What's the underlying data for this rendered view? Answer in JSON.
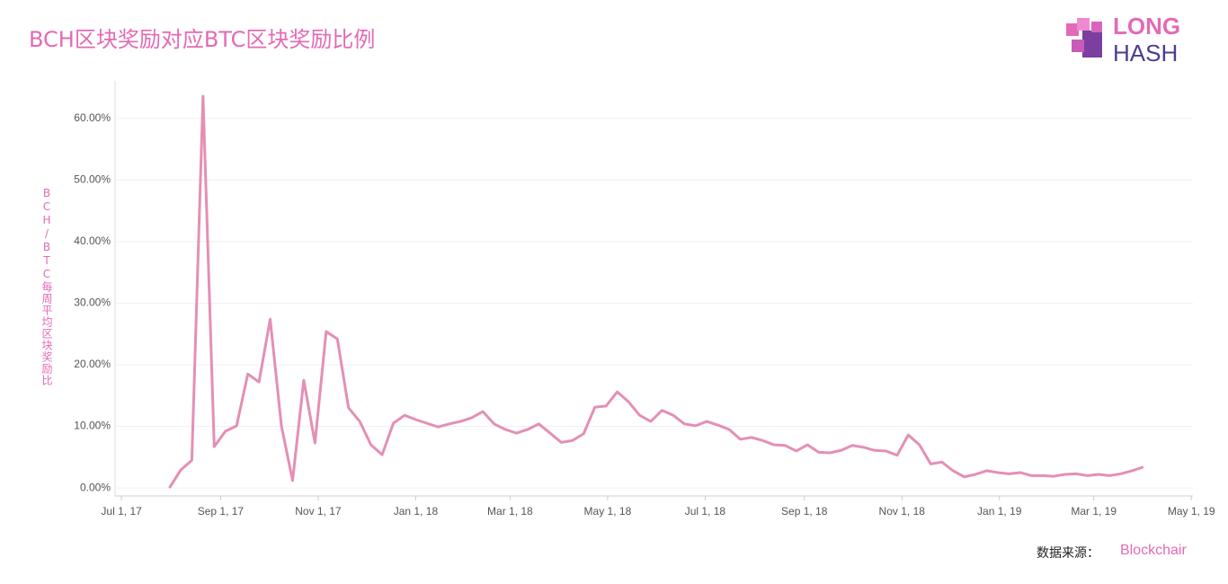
{
  "chart_data": {
    "type": "line",
    "title": "BCH区块奖励对应BTC区块奖励比例",
    "y_label": "BCH/BTC每周平均区块奖励比",
    "source_label": "数据来源：",
    "source": "Blockchair",
    "logo": {
      "line1": "LONG",
      "line2": "HASH"
    },
    "x": [
      "2017-07-31",
      "2017-08-07",
      "2017-08-14",
      "2017-08-21",
      "2017-08-28",
      "2017-09-04",
      "2017-09-11",
      "2017-09-18",
      "2017-09-25",
      "2017-10-02",
      "2017-10-09",
      "2017-10-16",
      "2017-10-23",
      "2017-10-30",
      "2017-11-06",
      "2017-11-13",
      "2017-11-20",
      "2017-11-27",
      "2017-12-04",
      "2017-12-11",
      "2017-12-18",
      "2017-12-25",
      "2018-01-01",
      "2018-01-08",
      "2018-01-15",
      "2018-01-22",
      "2018-01-29",
      "2018-02-05",
      "2018-02-12",
      "2018-02-19",
      "2018-02-26",
      "2018-03-05",
      "2018-03-12",
      "2018-03-19",
      "2018-03-26",
      "2018-04-02",
      "2018-04-09",
      "2018-04-16",
      "2018-04-23",
      "2018-04-30",
      "2018-05-07",
      "2018-05-14",
      "2018-05-21",
      "2018-05-28",
      "2018-06-04",
      "2018-06-11",
      "2018-06-18",
      "2018-06-25",
      "2018-07-02",
      "2018-07-09",
      "2018-07-16",
      "2018-07-23",
      "2018-07-30",
      "2018-08-06",
      "2018-08-13",
      "2018-08-20",
      "2018-08-27",
      "2018-09-03",
      "2018-09-10",
      "2018-09-17",
      "2018-09-24",
      "2018-10-01",
      "2018-10-08",
      "2018-10-15",
      "2018-10-22",
      "2018-10-29",
      "2018-11-05",
      "2018-11-12",
      "2018-11-19",
      "2018-11-26",
      "2018-12-03",
      "2018-12-10",
      "2018-12-17",
      "2018-12-24",
      "2018-12-31",
      "2019-01-07",
      "2019-01-14",
      "2019-01-21",
      "2019-01-28",
      "2019-02-04",
      "2019-02-11",
      "2019-02-18",
      "2019-02-25",
      "2019-03-04",
      "2019-03-11",
      "2019-03-18",
      "2019-03-25",
      "2019-04-01"
    ],
    "series": [
      {
        "name": "BCH/BTC",
        "color": "#e48fb5",
        "values": [
          0,
          2.9,
          4.5,
          63.6,
          6.7,
          9.2,
          10.1,
          18.5,
          17.2,
          27.4,
          10.1,
          1.2,
          17.5,
          7.3,
          25.4,
          24.2,
          13.0,
          10.8,
          7.0,
          5.4,
          10.5,
          11.8,
          11.1,
          10.5,
          9.9,
          10.4,
          10.8,
          11.4,
          12.4,
          10.4,
          9.5,
          8.9,
          9.5,
          10.4,
          8.9,
          7.4,
          7.7,
          8.8,
          13.1,
          13.3,
          15.6,
          14.0,
          11.8,
          10.8,
          12.6,
          11.8,
          10.4,
          10.1,
          10.8,
          10.2,
          9.5,
          7.9,
          8.2,
          7.7,
          7.0,
          6.9,
          6.0,
          7.0,
          5.8,
          5.7,
          6.1,
          6.9,
          6.6,
          6.1,
          6.0,
          5.3,
          8.6,
          7.0,
          3.9,
          4.2,
          2.8,
          1.8,
          2.2,
          2.8,
          2.5,
          2.3,
          2.5,
          2.0,
          2.0,
          1.9,
          2.2,
          2.3,
          2.0,
          2.2,
          2.0,
          2.3,
          2.8,
          3.4
        ]
      }
    ],
    "xlim": [
      "2017-06-27",
      "2019-05-02"
    ],
    "xticks": [
      {
        "value": "2017-07-01",
        "label": "Jul 1, 17"
      },
      {
        "value": "2017-09-01",
        "label": "Sep 1, 17"
      },
      {
        "value": "2017-11-01",
        "label": "Nov 1, 17"
      },
      {
        "value": "2018-01-01",
        "label": "Jan 1, 18"
      },
      {
        "value": "2018-03-01",
        "label": "Mar 1, 18"
      },
      {
        "value": "2018-05-01",
        "label": "May 1, 18"
      },
      {
        "value": "2018-07-01",
        "label": "Jul 1, 18"
      },
      {
        "value": "2018-09-01",
        "label": "Sep 1, 18"
      },
      {
        "value": "2018-11-01",
        "label": "Nov 1, 18"
      },
      {
        "value": "2019-01-01",
        "label": "Jan 1, 19"
      },
      {
        "value": "2019-03-01",
        "label": "Mar 1, 19"
      },
      {
        "value": "2019-05-01",
        "label": "May 1, 19"
      }
    ],
    "ylim": [
      -1.3,
      66.1
    ],
    "yticks": [
      {
        "value": 0,
        "label": "0.00%"
      },
      {
        "value": 10,
        "label": "10.00%"
      },
      {
        "value": 20,
        "label": "20.00%"
      },
      {
        "value": 30,
        "label": "30.00%"
      },
      {
        "value": 40,
        "label": "40.00%"
      },
      {
        "value": 50,
        "label": "50.00%"
      },
      {
        "value": 60,
        "label": "60.00%"
      }
    ],
    "grid": true
  }
}
